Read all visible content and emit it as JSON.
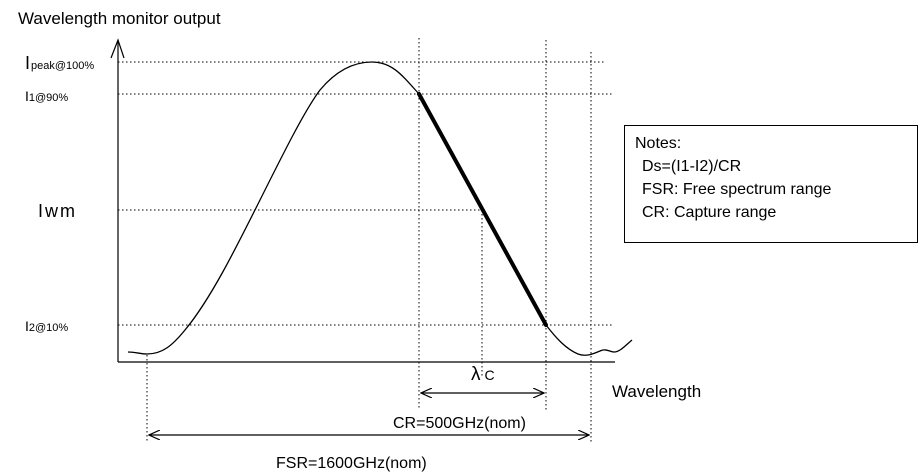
{
  "diagram": {
    "y_axis_title": "Wavelength monitor output",
    "x_axis_title": "Wavelength",
    "levels": {
      "peak": {
        "main": "I",
        "sub": "peak@100%"
      },
      "i1": {
        "main": "I",
        "sub": "1@90%"
      },
      "iwm": {
        "main": "Iwm"
      },
      "i2": {
        "main": "I",
        "sub": "2@10%"
      }
    },
    "lambda_c": {
      "symbol": "λ",
      "sub": "C"
    },
    "cr_label": "CR=500GHz(nom)",
    "fsr_label": "FSR=1600GHz(nom)"
  },
  "notes": {
    "title": "Notes:",
    "items": [
      "Ds=(I1-I2)/CR",
      "FSR: Free spectrum range",
      "CR: Capture range"
    ]
  }
}
